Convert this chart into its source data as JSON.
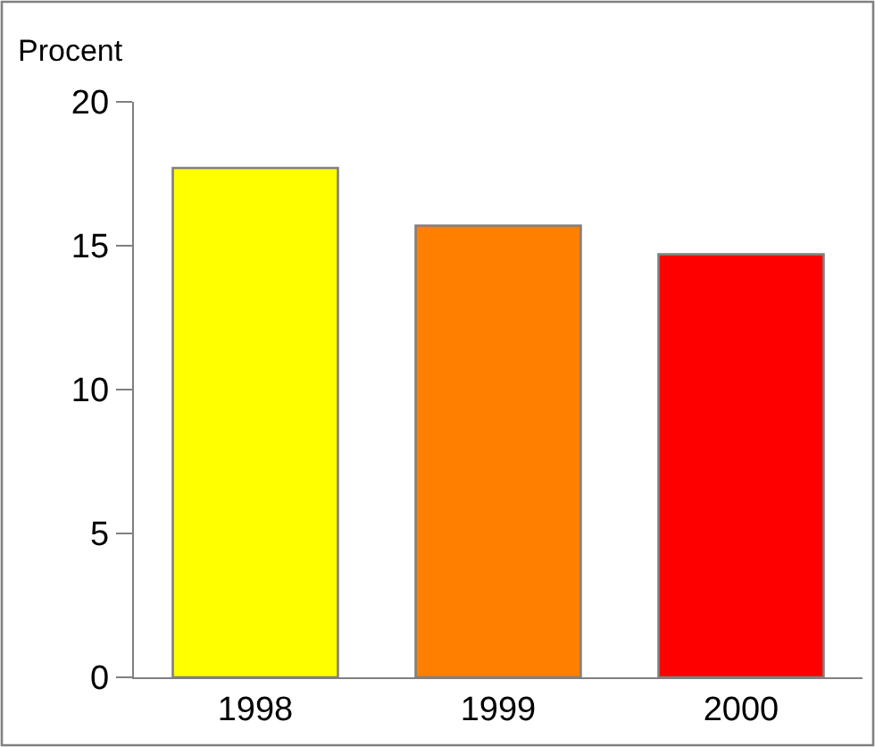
{
  "chart_data": {
    "type": "bar",
    "ylabel": "Procent",
    "categories": [
      "1998",
      "1999",
      "2000"
    ],
    "values": [
      17.7,
      15.7,
      14.7
    ],
    "colors": [
      "#ffff00",
      "#ff8000",
      "#ff0000"
    ],
    "ylim": [
      0,
      20
    ],
    "yticks": [
      0,
      5,
      10,
      15,
      20
    ],
    "grid": false
  }
}
